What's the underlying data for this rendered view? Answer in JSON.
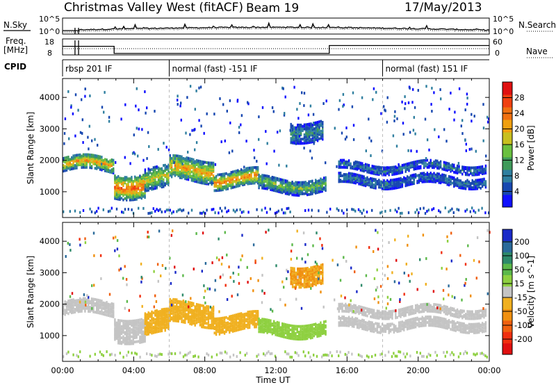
{
  "header": {
    "title": "Christmas Valley West (fitACF)",
    "beam": "Beam 19",
    "date": "17/May/2013"
  },
  "left_labels": {
    "nsky": "N.Sky",
    "freq": "Freq.",
    "freq_unit": "[MHz]",
    "cpid": "CPID"
  },
  "right_labels": {
    "nsearch": "N.Search",
    "nave": "Nave"
  },
  "noise_axis": {
    "left_ticks": [
      "10^5",
      "10^0"
    ],
    "right_ticks": [
      "10^5",
      "10^0"
    ]
  },
  "freq_axis": {
    "left_ticks": [
      "18",
      "8"
    ],
    "right_ticks": [
      "60",
      "0"
    ]
  },
  "cpid_segments": [
    {
      "label": "rbsp 201 IF",
      "start_h": 0
    },
    {
      "label": "normal (fast) -151 IF",
      "start_h": 6
    },
    {
      "label": "normal (fast) 151 IF",
      "start_h": 18
    }
  ],
  "x_axis": {
    "label": "Time UT",
    "ticks": [
      "00:00",
      "04:00",
      "08:00",
      "12:00",
      "16:00",
      "20:00",
      "00:00"
    ],
    "range_h": [
      0,
      24
    ]
  },
  "y_axis": {
    "label": "Slant Range [km]",
    "ticks": [
      "1000",
      "2000",
      "3000",
      "4000"
    ],
    "tick_values": [
      1000,
      2000,
      3000,
      4000
    ],
    "range_km": [
      180,
      4600
    ]
  },
  "power_colorbar": {
    "label": "Power [dB]",
    "ticks": [
      "4",
      "8",
      "12",
      "16",
      "20",
      "24",
      "28"
    ],
    "colors": [
      "#1010ff",
      "#1848b0",
      "#2f7f9f",
      "#3f9a5a",
      "#6ac040",
      "#c8c020",
      "#f0a010",
      "#f07010",
      "#f04010",
      "#e01010"
    ]
  },
  "velocity_colorbar": {
    "label": "Velocity [m s^-1]",
    "ticks": [
      "200",
      "100",
      "50",
      "15",
      "-15",
      "-50",
      "-100",
      "-200"
    ],
    "colors": [
      "#1a2ac8",
      "#2a6a9a",
      "#2e8a6a",
      "#5cb84a",
      "#8ed040",
      "#c4c4c4",
      "#f0b020",
      "#f09010",
      "#f06010",
      "#f03010",
      "#e01010"
    ]
  },
  "chart_data": {
    "type": "heatmap",
    "panels": [
      "Power",
      "Velocity"
    ],
    "x_label": "Time UT",
    "y_label": "Slant Range [km]",
    "echo_bands": [
      {
        "t": [
          0,
          2.9
        ],
        "range": [
          1700,
          2150
        ],
        "power_db": 22,
        "velocity": 0
      },
      {
        "t": [
          2.9,
          4.6
        ],
        "range": [
          900,
          1650
        ],
        "power_db": 26,
        "velocity": 0
      },
      {
        "t": [
          4.6,
          6.0
        ],
        "range": [
          1100,
          1800
        ],
        "power_db": 18,
        "velocity": -40
      },
      {
        "t": [
          6.0,
          8.5
        ],
        "range": [
          1400,
          2100
        ],
        "power_db": 22,
        "velocity": -40
      },
      {
        "t": [
          8.5,
          11.0
        ],
        "range": [
          1200,
          1700
        ],
        "power_db": 24,
        "velocity": -40
      },
      {
        "t": [
          11.0,
          14.8
        ],
        "range": [
          1050,
          1500
        ],
        "power_db": 14,
        "velocity": 40
      },
      {
        "t": [
          12.8,
          14.6
        ],
        "range": [
          2700,
          3300
        ],
        "power_db": 10,
        "velocity": -70
      },
      {
        "t": [
          15.5,
          23.8
        ],
        "range": [
          1700,
          1950
        ],
        "power_db": 8,
        "velocity": 0
      },
      {
        "t": [
          15.5,
          23.8
        ],
        "range": [
          1250,
          1550
        ],
        "power_db": 8,
        "velocity": 0
      }
    ],
    "cpid_change_hours": [
      6,
      18
    ]
  }
}
